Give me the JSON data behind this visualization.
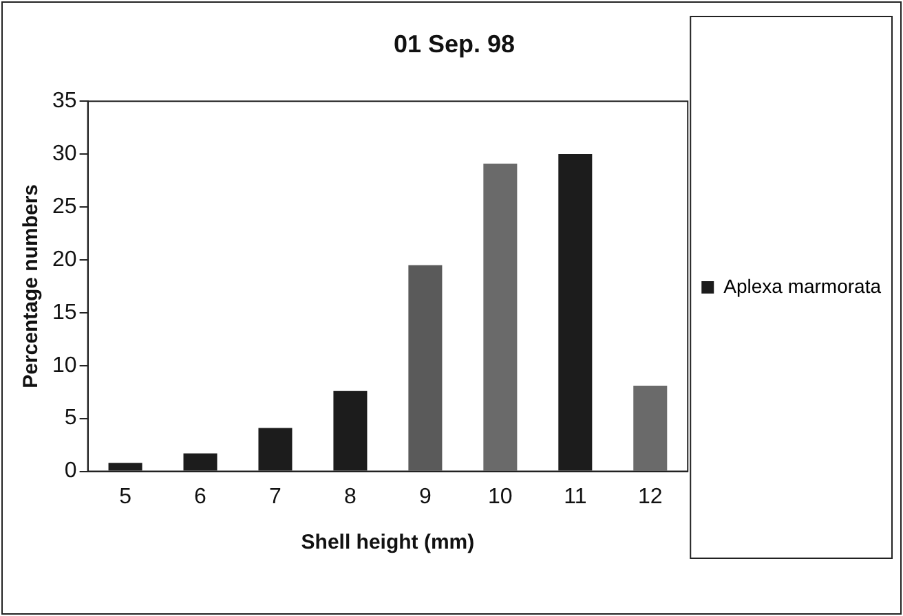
{
  "chart_data": {
    "type": "bar",
    "title": "01 Sep. 98",
    "xlabel": "Shell height (mm)",
    "ylabel": "Percentage numbers",
    "categories": [
      "5",
      "6",
      "7",
      "8",
      "9",
      "10",
      "11",
      "12"
    ],
    "series": [
      {
        "name": "Aplexa marmorata",
        "color": "#1c1c1c",
        "colors": [
          "#1c1c1c",
          "#1c1c1c",
          "#1c1c1c",
          "#1c1c1c",
          "#5a5a5a",
          "#6a6a6a",
          "#1c1c1c",
          "#6a6a6a"
        ],
        "values": [
          0.8,
          1.7,
          4.1,
          7.6,
          19.5,
          29.1,
          30.0,
          8.1
        ]
      }
    ],
    "ylim": [
      0,
      35
    ],
    "yticks": [
      0,
      5,
      10,
      15,
      20,
      25,
      30,
      35
    ],
    "grid": false,
    "legend": "right"
  }
}
